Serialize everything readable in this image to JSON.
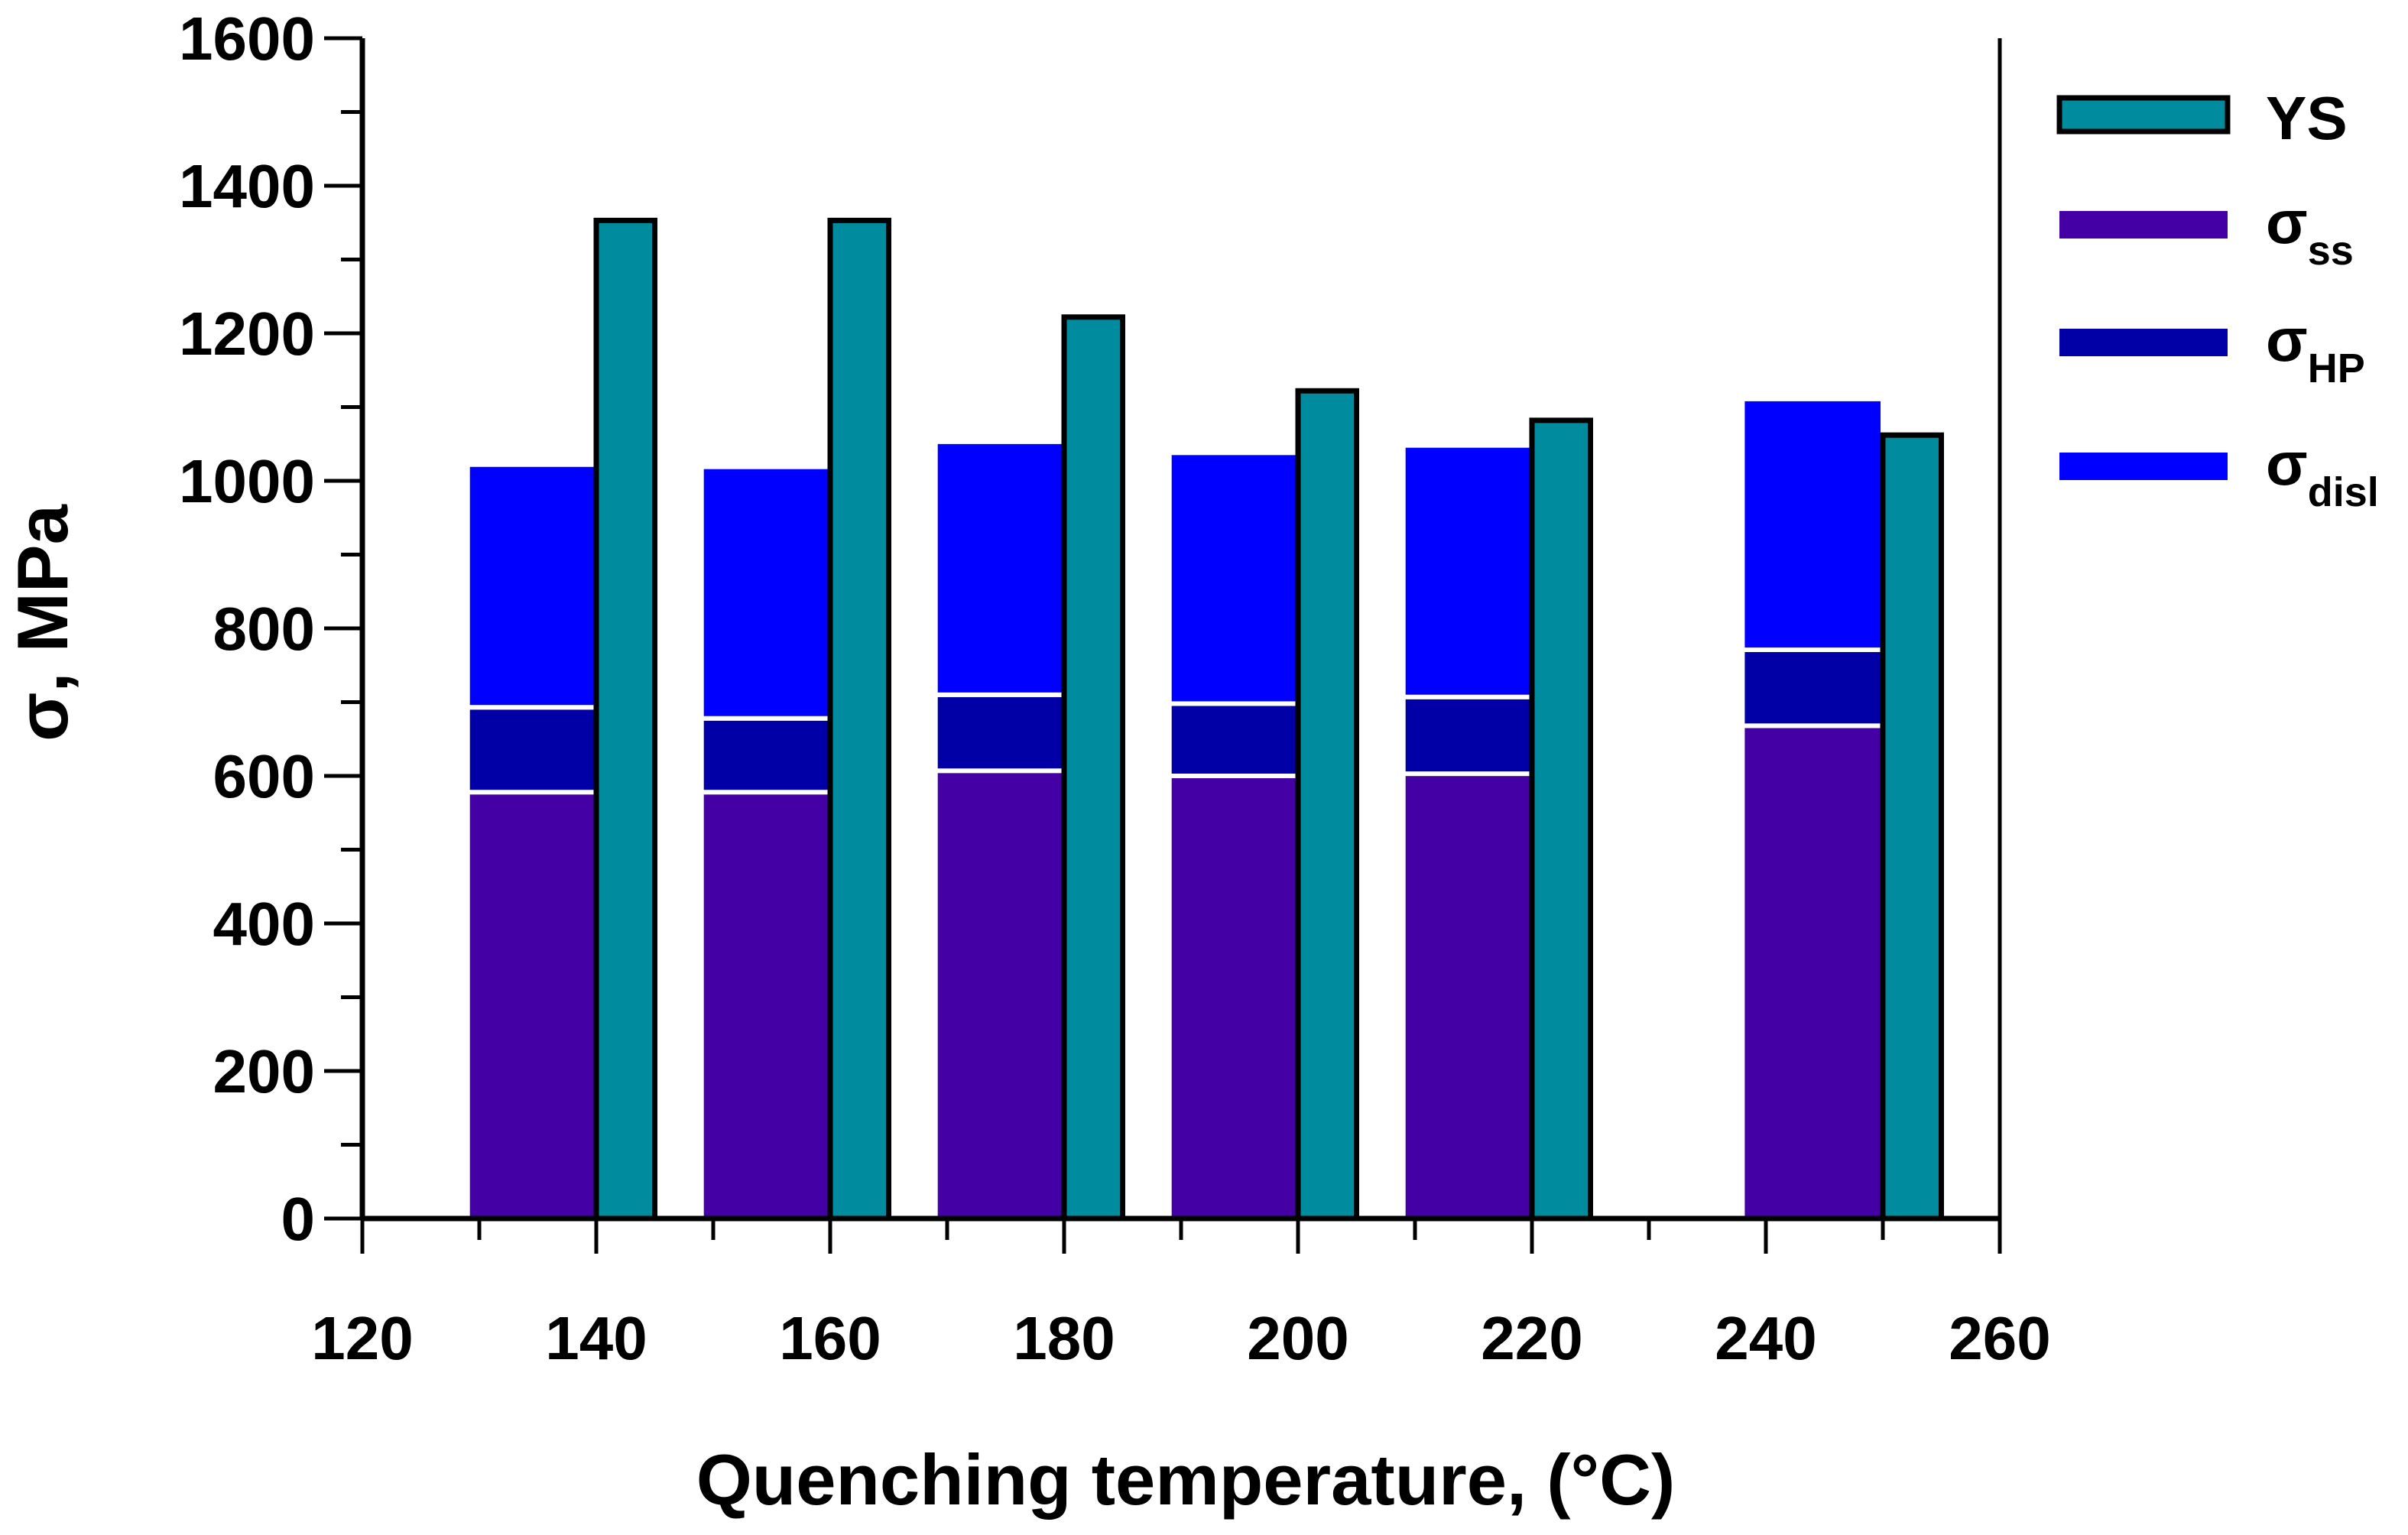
{
  "chart_data": {
    "type": "bar",
    "subtype": "stacked bars with adjacent reference bar",
    "title": "",
    "xlabel": "Quenching temperature, (°C)",
    "ylabel": "σ, MPa",
    "xlim": [
      120,
      260
    ],
    "ylim": [
      0,
      1600
    ],
    "x_ticks": [
      120,
      140,
      160,
      180,
      200,
      220,
      240,
      260
    ],
    "y_ticks": [
      0,
      200,
      400,
      600,
      800,
      1000,
      1200,
      1400,
      1600
    ],
    "x_minor_step": 10,
    "y_minor_step": 100,
    "grid": false,
    "legend_position": "right",
    "categories": [
      140,
      160,
      180,
      200,
      220,
      250
    ],
    "stacked_series": [
      {
        "key": "ss",
        "name": "σss",
        "symbol": "σ",
        "subscript": "ss",
        "color": "#4400a4",
        "values": [
          578,
          578,
          607,
          600,
          603,
          668
        ]
      },
      {
        "key": "hp",
        "name": "σHP",
        "symbol": "σ",
        "subscript": "HP",
        "color": "#0000a6",
        "values": [
          115,
          100,
          103,
          98,
          104,
          103
        ]
      },
      {
        "key": "disl",
        "name": "σdisl",
        "symbol": "σ",
        "subscript": "disl",
        "color": "#0000ff",
        "values": [
          329,
          341,
          343,
          340,
          341,
          340
        ]
      }
    ],
    "reference_series": {
      "key": "ys",
      "name": "YS",
      "color": "#008c9e",
      "edge": "#000000",
      "values": [
        1353,
        1353,
        1222,
        1122,
        1082,
        1062
      ]
    },
    "stack_ranges": [
      [
        129,
        140
      ],
      [
        149,
        160
      ],
      [
        169,
        180
      ],
      [
        189,
        200
      ],
      [
        209,
        220
      ],
      [
        238,
        250
      ]
    ],
    "ys_ranges": [
      [
        140,
        145
      ],
      [
        160,
        165
      ],
      [
        180,
        185
      ],
      [
        200,
        205
      ],
      [
        220,
        225
      ],
      [
        250,
        255
      ]
    ]
  }
}
